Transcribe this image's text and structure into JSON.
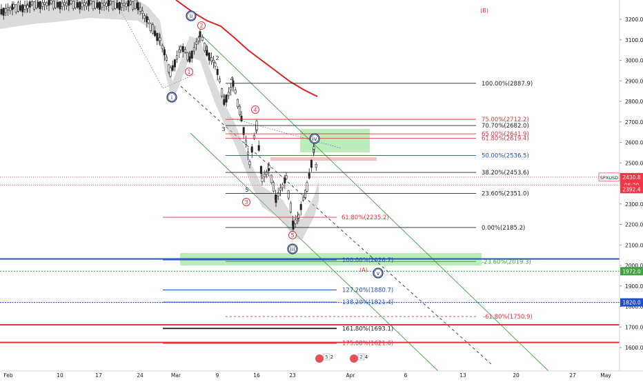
{
  "chart_data": {
    "type": "candlestick",
    "symbol": "SPXUSD",
    "price_axis": {
      "range": [
        1525,
        3280
      ],
      "ticks": [
        3200,
        3100,
        3000,
        2900,
        2800,
        2700,
        2600,
        2500,
        2400,
        2300,
        2200,
        2100,
        2000,
        1900,
        1800,
        1700,
        1600
      ]
    },
    "time_axis": {
      "labels": [
        "Feb",
        "10",
        "17",
        "24",
        "Mar",
        "9",
        "16",
        "23",
        "Apr",
        "6",
        "13",
        "20",
        "27",
        "May"
      ]
    },
    "badges": [
      {
        "id": "sym",
        "text": "SPXUSD",
        "value": "2430.8",
        "price": 2430.8,
        "color": "#f23645"
      },
      {
        "id": "time",
        "text": "",
        "value": "06:20",
        "price": 2392.0,
        "color": "#f23645"
      },
      {
        "id": "low",
        "text": "",
        "value": "2392.4",
        "price": 2372.0,
        "color": "#f23645"
      },
      {
        "id": "blue",
        "text": "",
        "value": "1972.0",
        "price": 1972.0,
        "color": "#43a047"
      },
      {
        "id": "b1820",
        "text": "",
        "value": "1820.0",
        "price": 1820.0,
        "color": "#1e50c8"
      }
    ],
    "fib_retracement_1": {
      "levels": [
        {
          "label": "100.00%(2887.9)",
          "price": 2887.9,
          "color": "#222222"
        },
        {
          "label": "75.00%(2712.2)",
          "price": 2712.2,
          "color": "#e0323c"
        },
        {
          "label": "70.70%(2682.0)",
          "price": 2682.0,
          "color": "#222222"
        },
        {
          "label": "65.00%(2641.9)",
          "price": 2641.9,
          "color": "#e0323c"
        },
        {
          "label": "61.80%(2619.4)",
          "price": 2619.4,
          "color": "#e0323c"
        },
        {
          "label": "50.00%(2536.5)",
          "price": 2536.5,
          "color": "#1e50c8"
        },
        {
          "label": "38.20%(2453.6)",
          "price": 2453.6,
          "color": "#222222"
        },
        {
          "label": "23.60%(2351.0)",
          "price": 2351.0,
          "color": "#222222"
        },
        {
          "label": "0.00%(2185.2)",
          "price": 2185.2,
          "color": "#222222"
        },
        {
          "label": "-23.60%(2019.3)",
          "price": 2019.3,
          "color": "#43a047"
        },
        {
          "label": "-61.80%(1750.9)",
          "price": 1750.9,
          "color": "#e0323c"
        }
      ]
    },
    "fib_extension": {
      "levels": [
        {
          "label": "61.80%(2235.2)",
          "price": 2235.2,
          "color": "#e0323c"
        },
        {
          "label": "100.00%(2026.7)",
          "price": 2026.7,
          "color": "#1e50c8"
        },
        {
          "label": "127.20%(1880.7)",
          "price": 1880.7,
          "color": "#1e50c8"
        },
        {
          "label": "138.20%(1821.4)",
          "price": 1821.4,
          "color": "#1e50c8"
        },
        {
          "label": "161.80%(1693.1)",
          "price": 1693.1,
          "color": "#222222"
        },
        {
          "label": "175.00%(1621.6)",
          "price": 1621.6,
          "color": "#e0323c"
        }
      ]
    },
    "horizontal_lines": [
      {
        "price": 2032,
        "color": "#1e50c8"
      },
      {
        "price": 1972,
        "color": "#43a047"
      },
      {
        "price": 1820,
        "color": "#1e50c8"
      },
      {
        "price": 1711,
        "color": "#e0323c"
      },
      {
        "price": 1625,
        "color": "#e0323c"
      }
    ],
    "wave_labels": [
      {
        "text": "(B)",
        "color": "#e0323c"
      },
      {
        "text": "(A)",
        "color": "#e0323c"
      },
      {
        "text": "ii",
        "color": "#1a2a6c"
      },
      {
        "text": "i",
        "color": "#1a2a6c"
      },
      {
        "text": "iii",
        "color": "#1a2a6c"
      },
      {
        "text": "iv",
        "color": "#1a2a6c"
      },
      {
        "text": "v",
        "color": "#1a2a6c"
      },
      {
        "text": "1",
        "color": "#e0323c"
      },
      {
        "text": "2",
        "color": "#e0323c"
      },
      {
        "text": "3",
        "color": "#e0323c"
      },
      {
        "text": "4",
        "color": "#e0323c"
      },
      {
        "text": "5",
        "color": "#e0323c"
      },
      {
        "text": "2",
        "color": "#222222"
      },
      {
        "text": "3",
        "color": "#222222"
      },
      {
        "text": "4",
        "color": "#222222"
      },
      {
        "text": "5",
        "color": "#222222"
      }
    ],
    "event_flags": [
      {
        "text": "5",
        "sub": "2"
      },
      {
        "text": "2",
        "sub": "4"
      }
    ],
    "colors": {
      "up": "#222222",
      "down": "#222222",
      "ma": "#e0211e",
      "channel": "#43a047",
      "zone_green": "#a5e6a0",
      "zone_red": "#f3b7bd"
    }
  }
}
